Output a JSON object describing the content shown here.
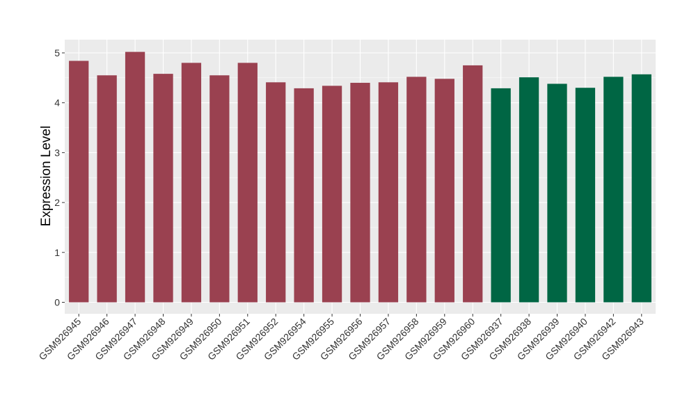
{
  "chart_data": {
    "type": "bar",
    "title": "",
    "xlabel": "",
    "ylabel": "Expression Level",
    "ylim": [
      -0.25,
      5.3
    ],
    "yticks": [
      0,
      1,
      2,
      3,
      4,
      5
    ],
    "grid": true,
    "categories": [
      "GSM926945",
      "GSM926946",
      "GSM926947",
      "GSM926948",
      "GSM926949",
      "GSM926950",
      "GSM926951",
      "GSM926952",
      "GSM926954",
      "GSM926955",
      "GSM926956",
      "GSM926957",
      "GSM926958",
      "GSM926959",
      "GSM926960",
      "GSM926937",
      "GSM926938",
      "GSM926939",
      "GSM926940",
      "GSM926942",
      "GSM926943"
    ],
    "values": [
      4.84,
      4.55,
      5.02,
      4.58,
      4.8,
      4.55,
      4.8,
      4.41,
      4.29,
      4.34,
      4.4,
      4.41,
      4.52,
      4.48,
      4.75,
      4.29,
      4.51,
      4.38,
      4.3,
      4.52,
      4.57
    ],
    "groups": [
      0,
      0,
      0,
      0,
      0,
      0,
      0,
      0,
      0,
      0,
      0,
      0,
      0,
      0,
      0,
      1,
      1,
      1,
      1,
      1,
      1
    ],
    "colors": [
      "#9a4150",
      "#006644"
    ],
    "panel_background": "#ebebeb"
  }
}
